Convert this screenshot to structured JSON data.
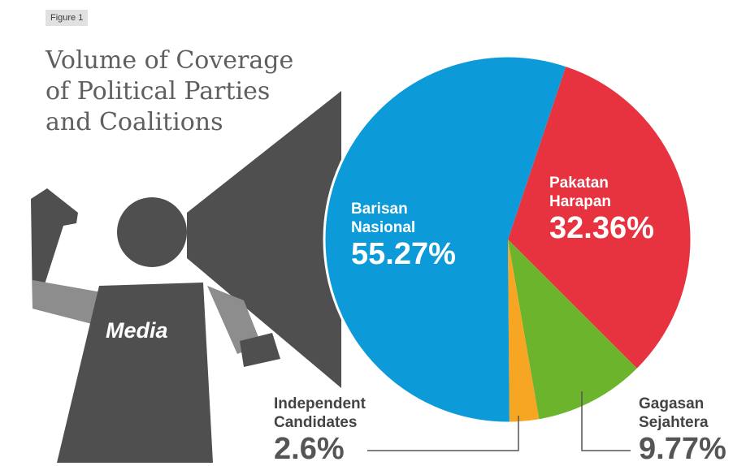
{
  "figure_tag": "Figure 1",
  "title_lines": [
    "Volume of Coverage",
    "of Political Parties",
    "and Coalitions"
  ],
  "figure_label": "Media",
  "colors": {
    "barisan": "#0d9ad8",
    "pakatan": "#e6333f",
    "gagasan": "#6db42d",
    "independent": "#f6a623",
    "figure": "#4f4f4f",
    "arm": "#8d8d8d"
  },
  "chart_data": {
    "type": "pie",
    "title": "Volume of Coverage of Political Parties and Coalitions",
    "slices": [
      {
        "name": "Barisan Nasional",
        "line1": "Barisan",
        "line2": "Nasional",
        "value": 55.27,
        "label": "55.27%",
        "color": "#0d9ad8"
      },
      {
        "name": "Pakatan Harapan",
        "line1": "Pakatan",
        "line2": "Harapan",
        "value": 32.36,
        "label": "32.36%",
        "color": "#e6333f"
      },
      {
        "name": "Gagasan Sejahtera",
        "line1": "Gagasan",
        "line2": "Sejahtera",
        "value": 9.77,
        "label": "9.77%",
        "color": "#6db42d"
      },
      {
        "name": "Independent Candidates",
        "line1": "Independent",
        "line2": "Candidates",
        "value": 2.6,
        "label": "2.6%",
        "color": "#f6a623"
      }
    ]
  }
}
